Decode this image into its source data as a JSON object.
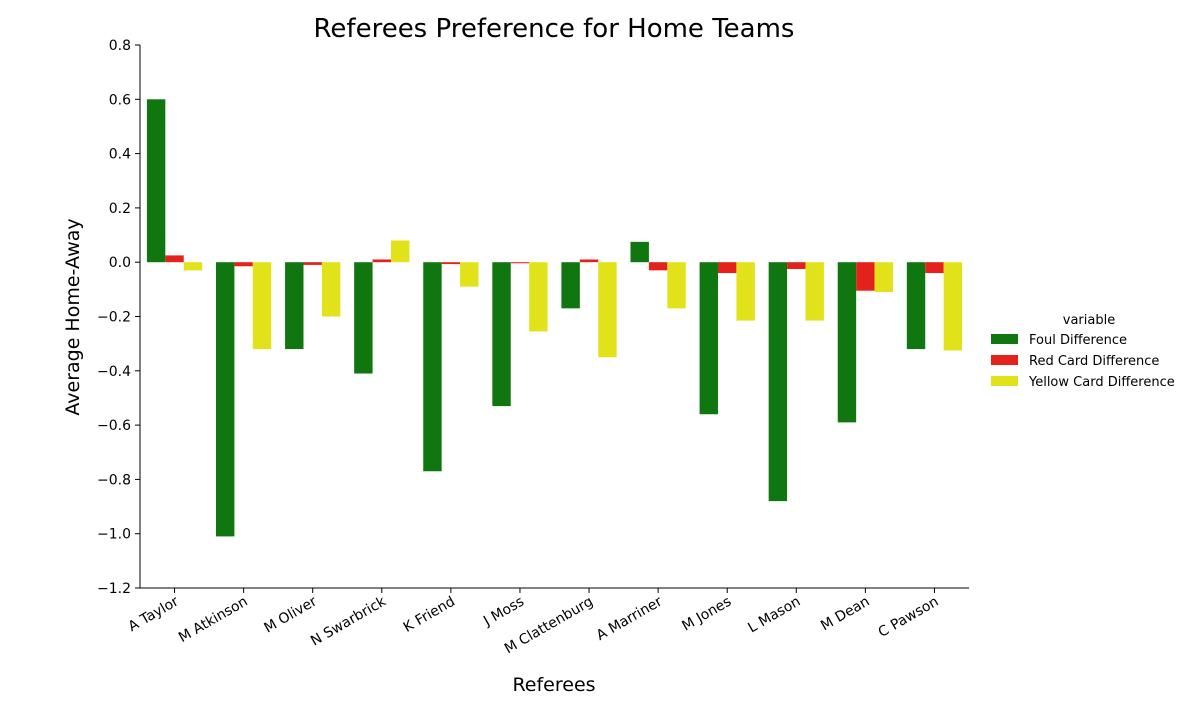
{
  "chart_data": {
    "type": "bar",
    "title": "Referees Preference for Home Teams",
    "xlabel": "Referees",
    "ylabel": "Average Home-Away",
    "ylim": [
      -1.2,
      0.8
    ],
    "yticks": [
      -1.2,
      -1.0,
      -0.8,
      -0.6,
      -0.4,
      -0.2,
      0.0,
      0.2,
      0.4,
      0.6,
      0.8
    ],
    "ytick_labels": [
      "−1.2",
      "−1.0",
      "−0.8",
      "−0.6",
      "−0.4",
      "−0.2",
      "0.0",
      "0.2",
      "0.4",
      "0.6",
      "0.8"
    ],
    "categories": [
      "A Taylor",
      "M Atkinson",
      "M Oliver",
      "N Swarbrick",
      "K Friend",
      "J Moss",
      "M Clattenburg",
      "A Marriner",
      "M Jones",
      "L Mason",
      "M Dean",
      "C Pawson"
    ],
    "legend_title": "variable",
    "legend_position": "right",
    "grid": false,
    "series": [
      {
        "name": "Foul Difference",
        "color": "#107710",
        "values": [
          0.6,
          -1.01,
          -0.32,
          -0.41,
          -0.77,
          -0.53,
          -0.17,
          0.075,
          -0.56,
          -0.88,
          -0.59,
          -0.32
        ]
      },
      {
        "name": "Red Card Difference",
        "color": "#e3221c",
        "values": [
          0.025,
          -0.015,
          -0.01,
          0.01,
          -0.007,
          -0.004,
          0.01,
          -0.03,
          -0.04,
          -0.025,
          -0.105,
          -0.04
        ]
      },
      {
        "name": "Yellow Card Difference",
        "color": "#e2e21b",
        "values": [
          -0.03,
          -0.32,
          -0.2,
          0.08,
          -0.09,
          -0.255,
          -0.35,
          -0.17,
          -0.215,
          -0.215,
          -0.11,
          -0.325
        ]
      }
    ]
  }
}
